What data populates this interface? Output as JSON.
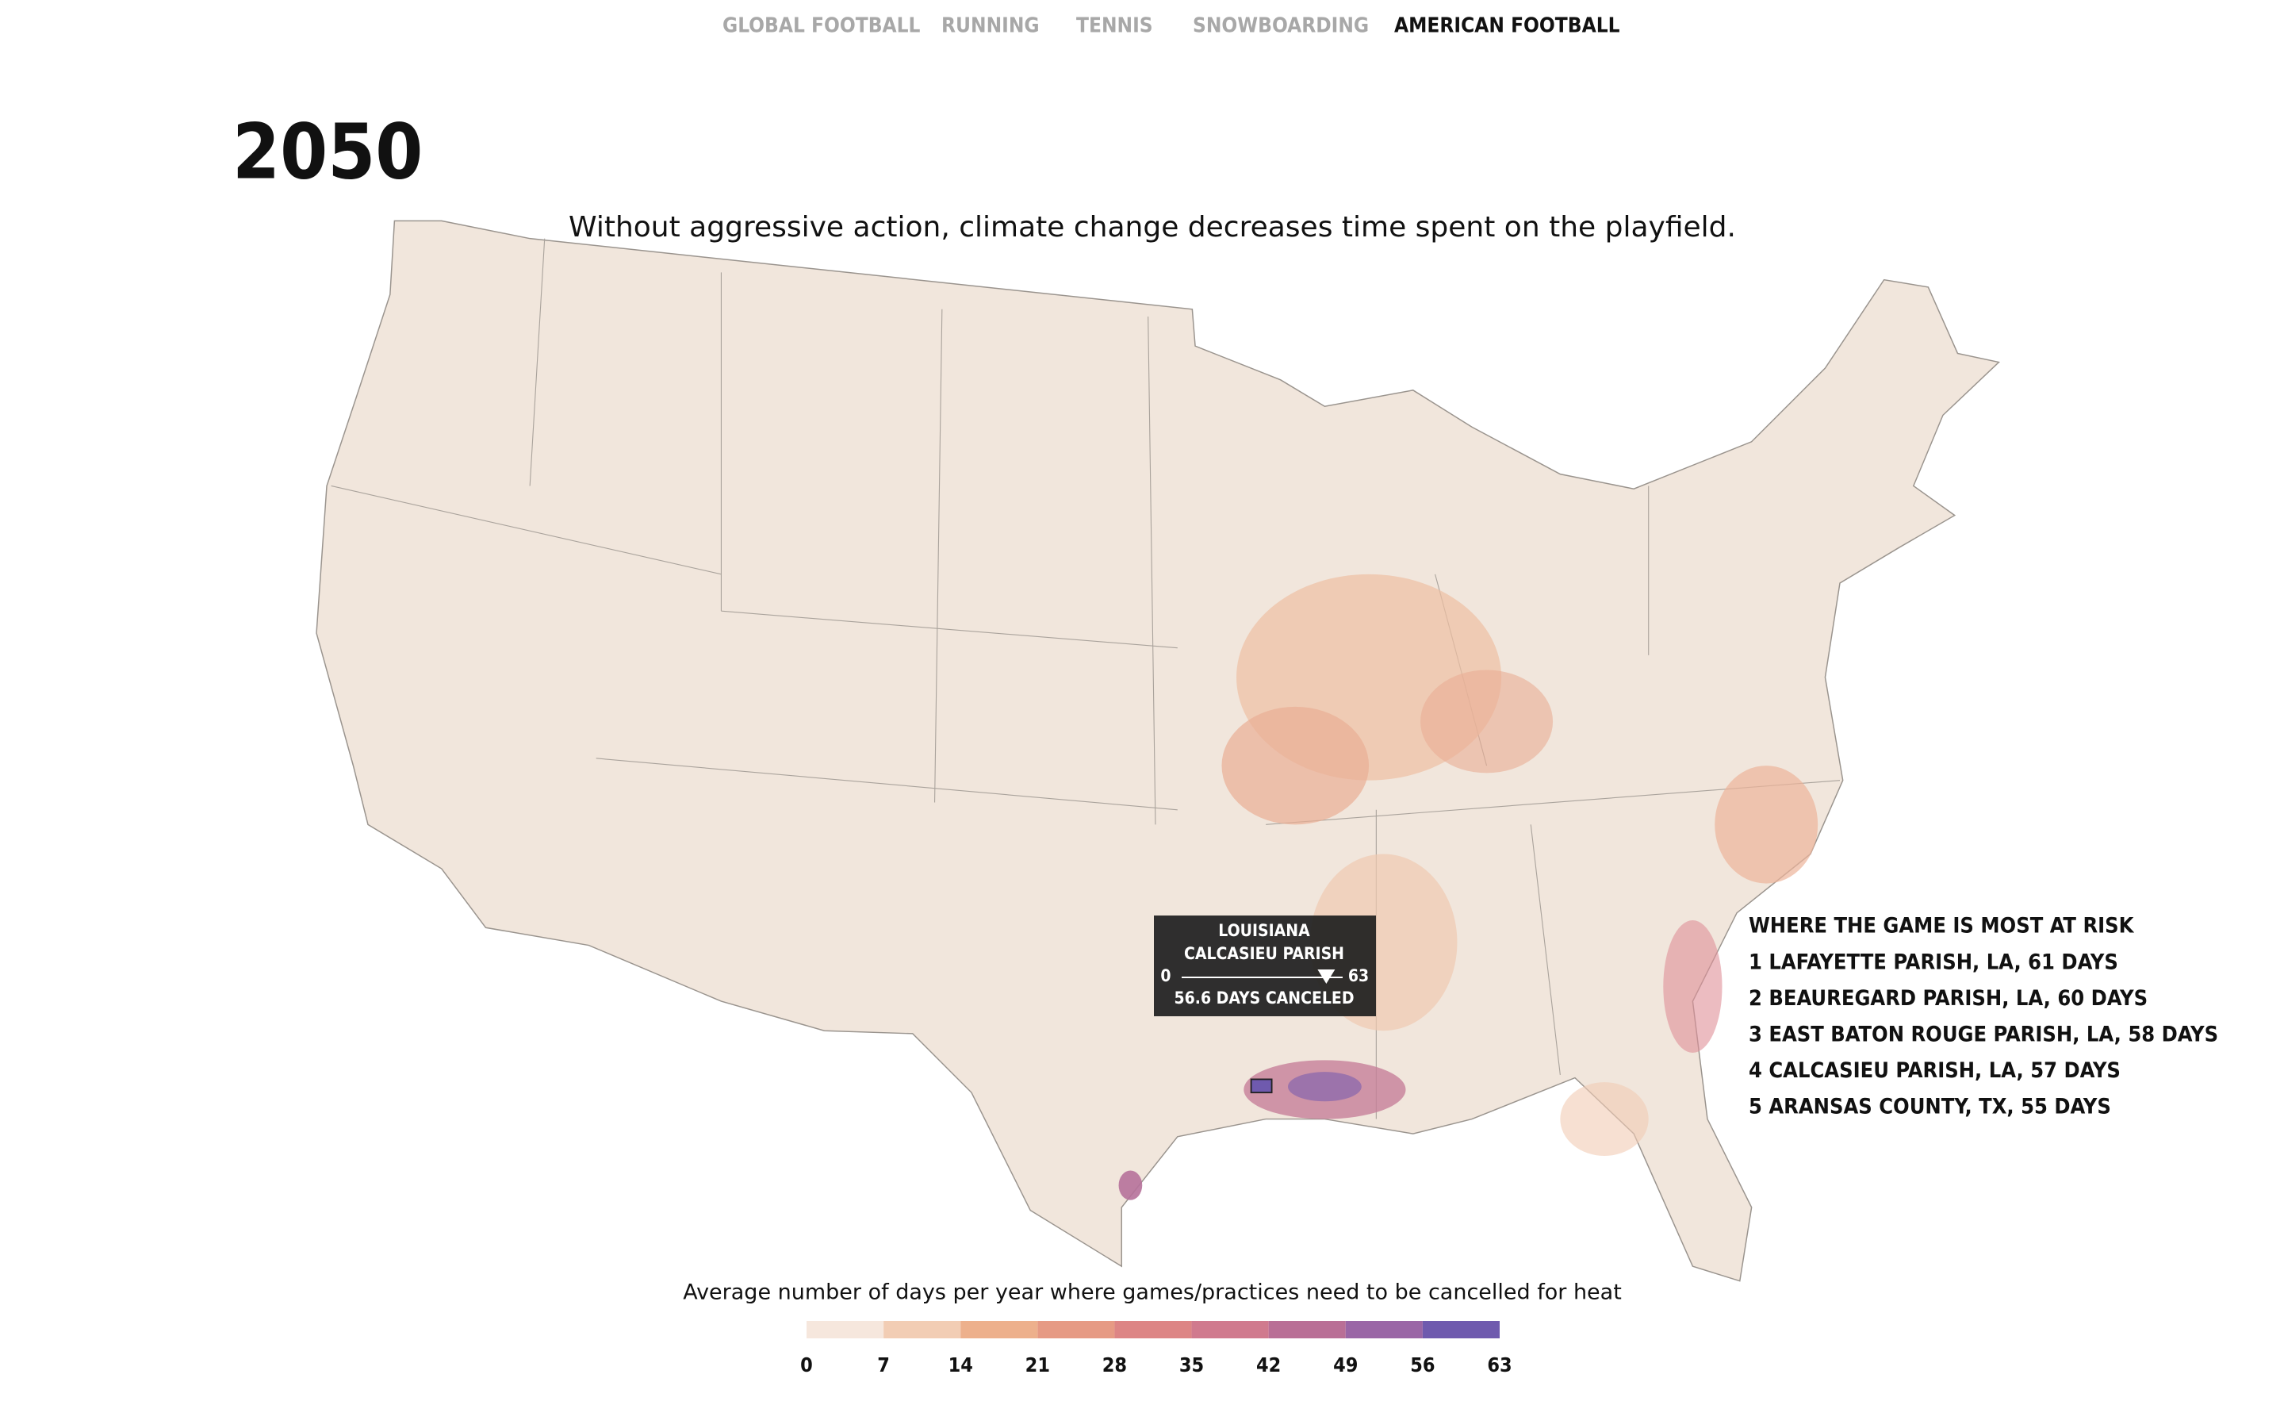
{
  "nav": {
    "items": [
      "GLOBAL FOOTBALL",
      "RUNNING",
      "TENNIS",
      "SNOWBOARDING",
      "AMERICAN FOOTBALL"
    ],
    "active": 4
  },
  "header": {
    "year": "2050",
    "subtitle": "Without aggressive action, climate change decreases time spent on the playfield."
  },
  "tooltip": {
    "state": "LOUISIANA",
    "county": "CALCASIEU PARISH",
    "min": 0,
    "max": 63,
    "value": 56.6,
    "value_label": "56.6 DAYS CANCELED"
  },
  "risk": {
    "title": "WHERE THE GAME IS MOST AT RISK",
    "items": [
      "1 LAFAYETTE PARISH, LA, 61 DAYS",
      "2 BEAUREGARD PARISH, LA, 60 DAYS",
      "3 EAST BATON ROUGE PARISH, LA, 58 DAYS",
      "4 CALCASIEU PARISH, LA, 57 DAYS",
      "5 ARANSAS COUNTY, TX, 55 DAYS"
    ]
  },
  "legend": {
    "title": "Average number of days per year where games/practices need to be cancelled for heat",
    "ticks": [
      0,
      7,
      14,
      21,
      28,
      35,
      42,
      49,
      56,
      63
    ],
    "colors": [
      "#f6e7dd",
      "#f2cdb4",
      "#edb08c",
      "#e69a84",
      "#dd8585",
      "#d07a8e",
      "#b96f96",
      "#9a66a6",
      "#6f5aae"
    ]
  }
}
